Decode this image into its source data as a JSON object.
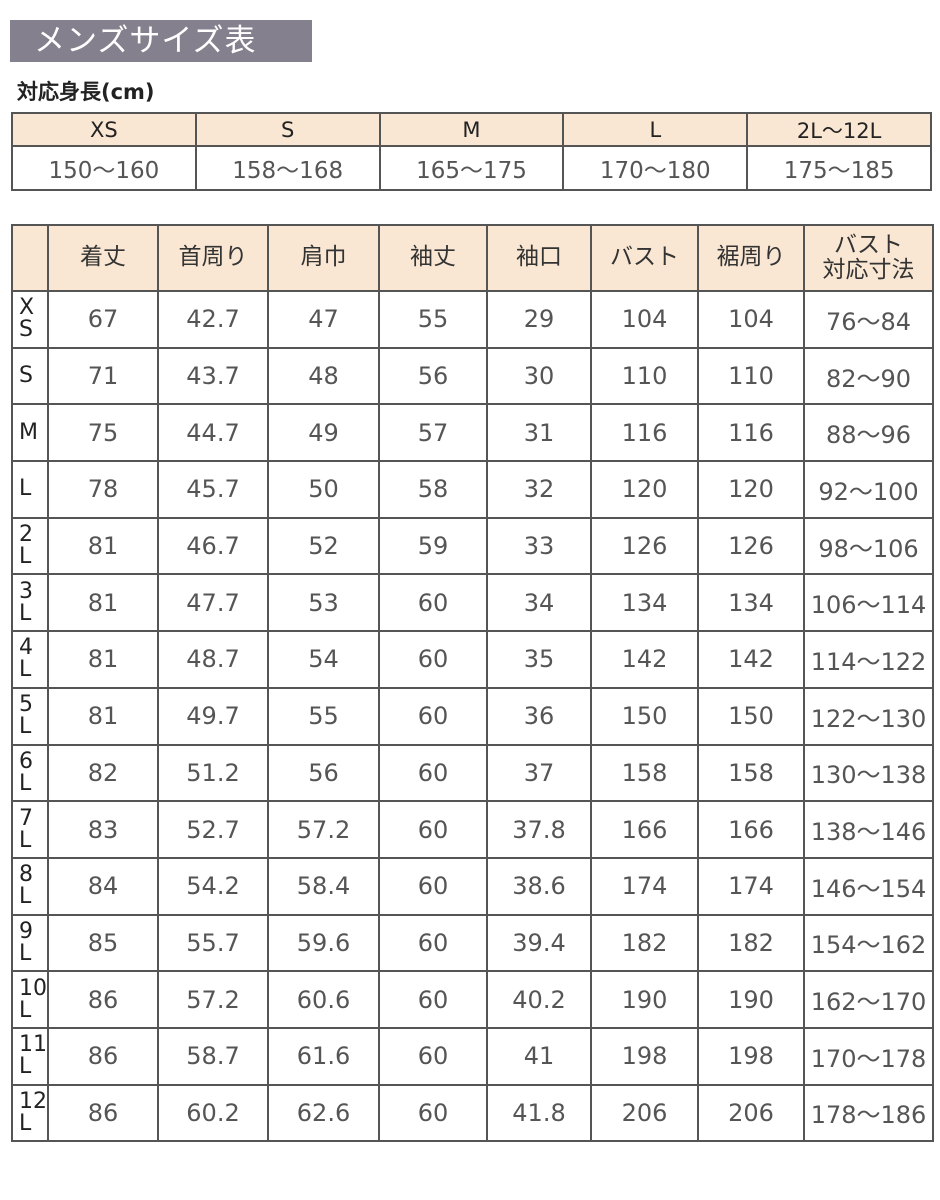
{
  "title": "メンズサイズ表",
  "height_section": {
    "label": "対応身長(cm)",
    "sizes": [
      "XS",
      "S",
      "M",
      "L",
      "2L～12L"
    ],
    "ranges": [
      "150～160",
      "158～168",
      "165～175",
      "170～180",
      "175～185"
    ]
  },
  "size_table": {
    "headers": [
      "",
      "着丈",
      "首周り",
      "肩巾",
      "袖丈",
      "袖口",
      "バスト",
      "裾周り",
      "バスト\n対応寸法"
    ],
    "rows": [
      {
        "size": [
          "X",
          "S"
        ],
        "values": [
          "67",
          "42.7",
          "47",
          "55",
          "29",
          "104",
          "104",
          "76～84"
        ]
      },
      {
        "size": [
          "S"
        ],
        "values": [
          "71",
          "43.7",
          "48",
          "56",
          "30",
          "110",
          "110",
          "82～90"
        ]
      },
      {
        "size": [
          "M"
        ],
        "values": [
          "75",
          "44.7",
          "49",
          "57",
          "31",
          "116",
          "116",
          "88～96"
        ]
      },
      {
        "size": [
          "L"
        ],
        "values": [
          "78",
          "45.7",
          "50",
          "58",
          "32",
          "120",
          "120",
          "92～100"
        ]
      },
      {
        "size": [
          "2",
          "L"
        ],
        "values": [
          "81",
          "46.7",
          "52",
          "59",
          "33",
          "126",
          "126",
          "98～106"
        ]
      },
      {
        "size": [
          "3",
          "L"
        ],
        "values": [
          "81",
          "47.7",
          "53",
          "60",
          "34",
          "134",
          "134",
          "106～114"
        ]
      },
      {
        "size": [
          "4",
          "L"
        ],
        "values": [
          "81",
          "48.7",
          "54",
          "60",
          "35",
          "142",
          "142",
          "114～122"
        ]
      },
      {
        "size": [
          "5",
          "L"
        ],
        "values": [
          "81",
          "49.7",
          "55",
          "60",
          "36",
          "150",
          "150",
          "122～130"
        ]
      },
      {
        "size": [
          "6",
          "L"
        ],
        "values": [
          "82",
          "51.2",
          "56",
          "60",
          "37",
          "158",
          "158",
          "130～138"
        ]
      },
      {
        "size": [
          "7",
          "L"
        ],
        "values": [
          "83",
          "52.7",
          "57.2",
          "60",
          "37.8",
          "166",
          "166",
          "138～146"
        ]
      },
      {
        "size": [
          "8",
          "L"
        ],
        "values": [
          "84",
          "54.2",
          "58.4",
          "60",
          "38.6",
          "174",
          "174",
          "146～154"
        ]
      },
      {
        "size": [
          "9",
          "L"
        ],
        "values": [
          "85",
          "55.7",
          "59.6",
          "60",
          "39.4",
          "182",
          "182",
          "154～162"
        ]
      },
      {
        "size": [
          "10",
          "L"
        ],
        "values": [
          "86",
          "57.2",
          "60.6",
          "60",
          "40.2",
          "190",
          "190",
          "162～170"
        ]
      },
      {
        "size": [
          "11",
          "L"
        ],
        "values": [
          "86",
          "58.7",
          "61.6",
          "60",
          "41",
          "198",
          "198",
          "170～178"
        ]
      },
      {
        "size": [
          "12",
          "L"
        ],
        "values": [
          "86",
          "60.2",
          "62.6",
          "60",
          "41.8",
          "206",
          "206",
          "178～186"
        ]
      }
    ]
  },
  "colors": {
    "title_bg": "#85808e",
    "header_bg": "#fae7d3",
    "border": "#555555"
  }
}
